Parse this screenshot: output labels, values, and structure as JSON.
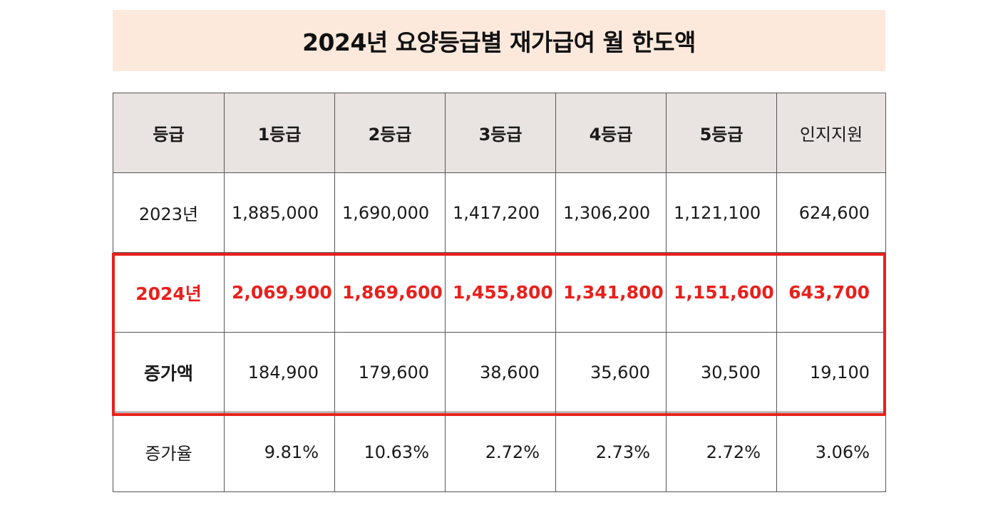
{
  "title": "2024년 요양등급별 재가급여 월 한도액",
  "header": [
    "등급",
    "1등급",
    "2등급",
    "3등급",
    "4등급",
    "5등급",
    "인지지원"
  ],
  "rows": [
    {
      "label": "2023년",
      "values": [
        "1,885,000",
        "1,690,000",
        "1,417,200",
        "1,306,200",
        "1,121,100",
        "624,600"
      ]
    },
    {
      "label": "2024년",
      "values": [
        "2,069,900",
        "1,869,600",
        "1,455,800",
        "1,341,800",
        "1,151,600",
        "643,700"
      ]
    },
    {
      "label": "증가액",
      "values": [
        "184,900",
        "179,600",
        "38,600",
        "35,600",
        "30,500",
        "19,100"
      ]
    },
    {
      "label": "증가율",
      "values": [
        "9.81%",
        "10.63%",
        "2.72%",
        "2.73%",
        "2.72%",
        "3.06%"
      ]
    }
  ],
  "colors": {
    "title_background": "#fce9dc",
    "header_background": "#e9e3e1",
    "highlight": "#e8201c",
    "border": "#555555"
  }
}
